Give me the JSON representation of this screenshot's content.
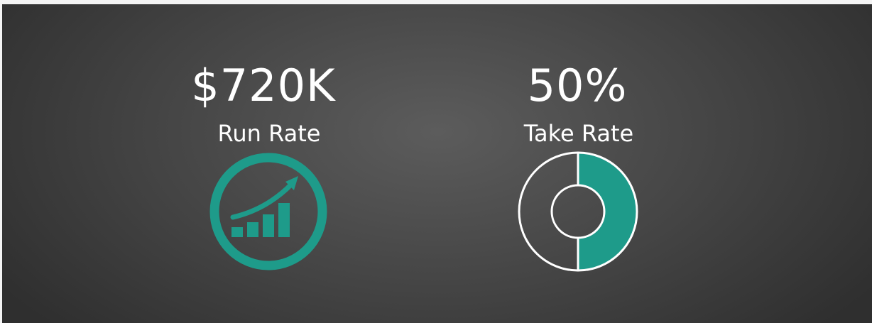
{
  "metrics": [
    {
      "value": "$720K",
      "label": "Run Rate"
    },
    {
      "value": "50%",
      "label": "Take Rate"
    }
  ]
}
